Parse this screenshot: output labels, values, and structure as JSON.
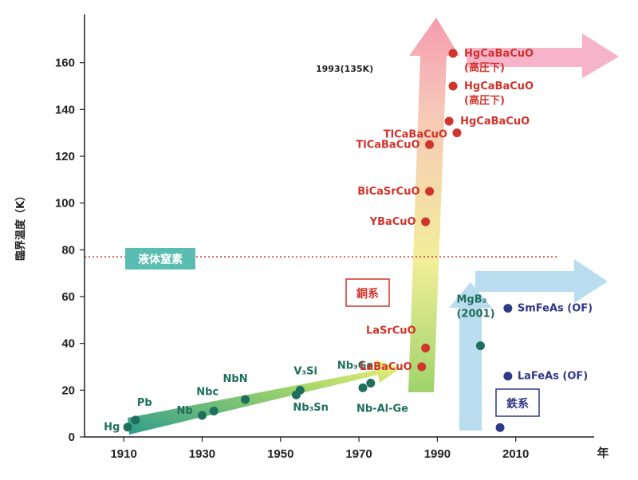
{
  "chart_data": {
    "type": "scatter",
    "ylabel": "臨界温度（K）",
    "xlabel_unit": "年",
    "xlim": [
      1900,
      2030
    ],
    "ylim": [
      0,
      180
    ],
    "xticks": [
      1910,
      1930,
      1950,
      1970,
      1990,
      2010
    ],
    "yticks": [
      0,
      20,
      40,
      60,
      80,
      100,
      120,
      140,
      160
    ],
    "reference_line": {
      "label": "液体窒素",
      "y": 77,
      "color": "#d0342c",
      "style": "dotted"
    },
    "annotation": "1993(135K)",
    "category_labels": [
      {
        "label": "銅系",
        "color": "#d0342c"
      },
      {
        "label": "鉄系",
        "color": "#2e3a87"
      }
    ],
    "series": [
      {
        "name": "metal",
        "color": "#1e6f5c",
        "points": [
          {
            "label": "Hg",
            "x": 1911,
            "y": 4.2
          },
          {
            "label": "Pb",
            "x": 1913,
            "y": 7.2
          },
          {
            "label": "Nb",
            "x": 1930,
            "y": 9.2
          },
          {
            "label": "Nbc",
            "x": 1933,
            "y": 11.1
          },
          {
            "label": "NbN",
            "x": 1941,
            "y": 16
          },
          {
            "label": "Nb₃Sn",
            "x": 1954,
            "y": 18
          },
          {
            "label": "V₃Si",
            "x": 1955,
            "y": 20
          },
          {
            "label": "Nb₃Ge",
            "x": 1973,
            "y": 23
          },
          {
            "label": "Nb-Al-Ge",
            "x": 1971,
            "y": 21
          },
          {
            "label": "MgB₂ (2001)",
            "x": 2001,
            "y": 39
          }
        ]
      },
      {
        "name": "copper",
        "color": "#d0342c",
        "points": [
          {
            "label": "LaBaCuO",
            "x": 1986,
            "y": 30
          },
          {
            "label": "LaSrCuO",
            "x": 1987,
            "y": 38
          },
          {
            "label": "YBaCuO",
            "x": 1987,
            "y": 92
          },
          {
            "label": "BiCaSrCuO",
            "x": 1988,
            "y": 105
          },
          {
            "label": "TlCaBaCuO",
            "x": 1988,
            "y": 125
          },
          {
            "label": "HgCaBaCuO",
            "x": 1993,
            "y": 135
          },
          {
            "label": "TlCaBaCuO",
            "x": 1995,
            "y": 130
          },
          {
            "label": "HgCaBaCuO (高圧下)",
            "x": 1994,
            "y": 150
          },
          {
            "label": "HgCaBaCuO (高圧下)",
            "x": 1994,
            "y": 164
          }
        ]
      },
      {
        "name": "iron",
        "color": "#2e3a87",
        "points": [
          {
            "label": "LaFeAs (OF)",
            "x": 2008,
            "y": 26
          },
          {
            "label": "SmFeAs (OF)",
            "x": 2008,
            "y": 55
          },
          {
            "label": "",
            "x": 2006,
            "y": 4
          }
        ]
      }
    ]
  }
}
